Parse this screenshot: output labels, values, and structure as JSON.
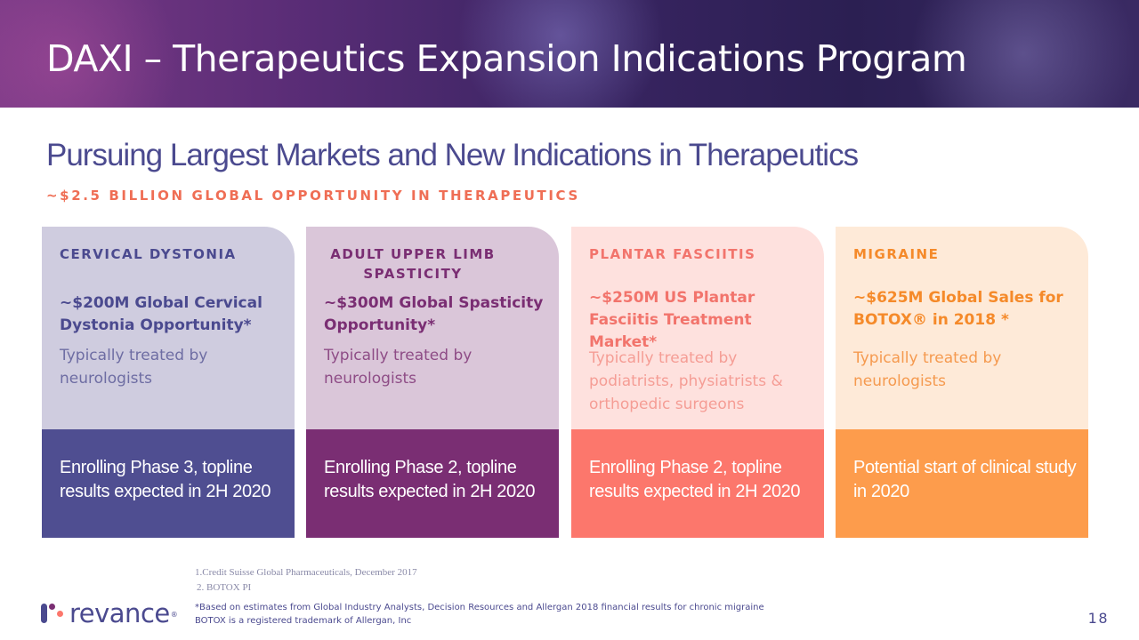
{
  "header": {
    "title": "DAXI – Therapeutics Expansion Indications Program"
  },
  "subtitle": "Pursuing Largest Markets and New Indications in Therapeutics",
  "opportunity": "~$2.5 BILLION GLOBAL OPPORTUNITY IN THERAPEUTICS",
  "cards": [
    {
      "label": "CERVICAL DYSTONIA",
      "market": "~$200M Global Cervical Dystonia Opportunity*",
      "treated": "Typically treated by neurologists",
      "status": "Enrolling Phase 3,  topline results expected in 2H 2020"
    },
    {
      "label": "ADULT UPPER LIMB SPASTICITY",
      "market": "~$300M Global Spasticity Opportunity*",
      "treated": "Typically treated by neurologists",
      "status": "Enrolling Phase 2, topline results expected in 2H 2020"
    },
    {
      "label": "PLANTAR FASCIITIS",
      "market": "~$250M US Plantar Fasciitis Treatment Market*",
      "treated": "Typically treated by podiatrists, physiatrists & orthopedic surgeons",
      "status": "Enrolling Phase 2, topline results expected in 2H 2020"
    },
    {
      "label": "MIGRAINE",
      "market": "~$625M Global Sales for BOTOX® in 2018 *",
      "treated": "Typically treated by neurologists",
      "status": "Potential start of clinical study in 2020"
    }
  ],
  "footnotes": [
    "1.Credit Suisse Global Pharmaceuticals, December 2017",
    "2. BOTOX PI"
  ],
  "disclaimer": [
    "*Based on estimates from Global Industry Analysts, Decision Resources and Allergan 2018 financial results for chronic migraine",
    "BOTOX is a registered trademark of Allergan, Inc"
  ],
  "logo": {
    "text": "revance",
    "reg": "®"
  },
  "page_number": "18",
  "colors": {
    "brand_purple": "#4b4a8f",
    "plum": "#7a2e73",
    "coral": "#fc776c",
    "orange": "#fd9c4c"
  }
}
